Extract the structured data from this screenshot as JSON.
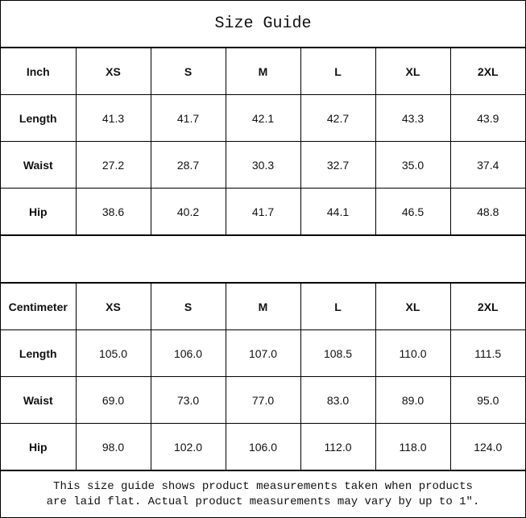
{
  "title": "Size Guide",
  "inch_table": {
    "headers": [
      "Inch",
      "XS",
      "S",
      "M",
      "L",
      "XL",
      "2XL"
    ],
    "rows": [
      [
        "Length",
        "41.3",
        "41.7",
        "42.1",
        "42.7",
        "43.3",
        "43.9"
      ],
      [
        "Waist",
        "27.2",
        "28.7",
        "30.3",
        "32.7",
        "35.0",
        "37.4"
      ],
      [
        "Hip",
        "38.6",
        "40.2",
        "41.7",
        "44.1",
        "46.5",
        "48.8"
      ]
    ]
  },
  "cm_table": {
    "headers": [
      "Centimeter",
      "XS",
      "S",
      "M",
      "L",
      "XL",
      "2XL"
    ],
    "rows": [
      [
        "Length",
        "105.0",
        "106.0",
        "107.0",
        "108.5",
        "110.0",
        "111.5"
      ],
      [
        "Waist",
        "69.0",
        "73.0",
        "77.0",
        "83.0",
        "89.0",
        "95.0"
      ],
      [
        "Hip",
        "98.0",
        "102.0",
        "106.0",
        "112.0",
        "118.0",
        "124.0"
      ]
    ]
  },
  "note": {
    "line1": "This size guide shows product measurements taken when products",
    "line2": "are laid flat. Actual product measurements may vary by up to 1″."
  }
}
